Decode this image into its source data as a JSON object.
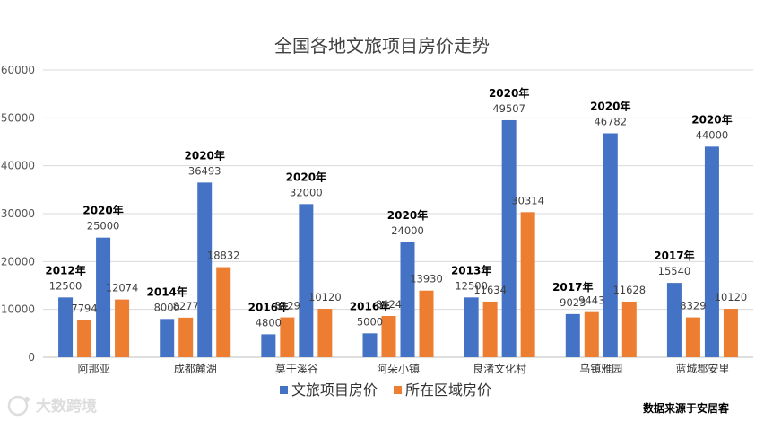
{
  "chart_data": {
    "type": "bar",
    "title": "全国各地文旅项目房价走势",
    "categories": [
      "阿那亚",
      "成都麓湖",
      "莫干溪谷",
      "阿朵小镇",
      "良渚文化村",
      "乌镇雅园",
      "蓝城郡安里"
    ],
    "ylim": [
      0,
      60000
    ],
    "yticks": [
      0,
      10000,
      20000,
      30000,
      40000,
      50000,
      60000
    ],
    "grid": true,
    "legend_position": "bottom",
    "colors": {
      "project": "#4472C4",
      "regional": "#ED7D31"
    },
    "series": [
      {
        "name": "文旅项目房价",
        "group": 0,
        "key": "project",
        "values": [
          12500,
          8000,
          4800,
          5000,
          12500,
          9023,
          15540
        ],
        "years": [
          "2012年",
          "2014年",
          "2016年",
          "2016年",
          "2013年",
          "2017年",
          "2017年"
        ]
      },
      {
        "name": "所在区域房价",
        "group": 0,
        "key": "regional",
        "values": [
          7794,
          8277,
          8329,
          8624,
          11634,
          9443,
          8329
        ]
      },
      {
        "name": "文旅项目房价",
        "group": 1,
        "key": "project",
        "values": [
          25000,
          36493,
          32000,
          24000,
          49507,
          46782,
          44000
        ],
        "years": [
          "2020年",
          "2020年",
          "2020年",
          "2020年",
          "2020年",
          "2020年",
          "2020年"
        ]
      },
      {
        "name": "所在区域房价",
        "group": 1,
        "key": "regional",
        "values": [
          12074,
          18832,
          10120,
          13930,
          30314,
          11628,
          10120
        ]
      }
    ],
    "legend": [
      {
        "label": "文旅项目房价",
        "key": "project"
      },
      {
        "label": "所在区域房价",
        "key": "regional"
      }
    ]
  },
  "source": "数据来源于安居客",
  "watermark": "大数跨境"
}
